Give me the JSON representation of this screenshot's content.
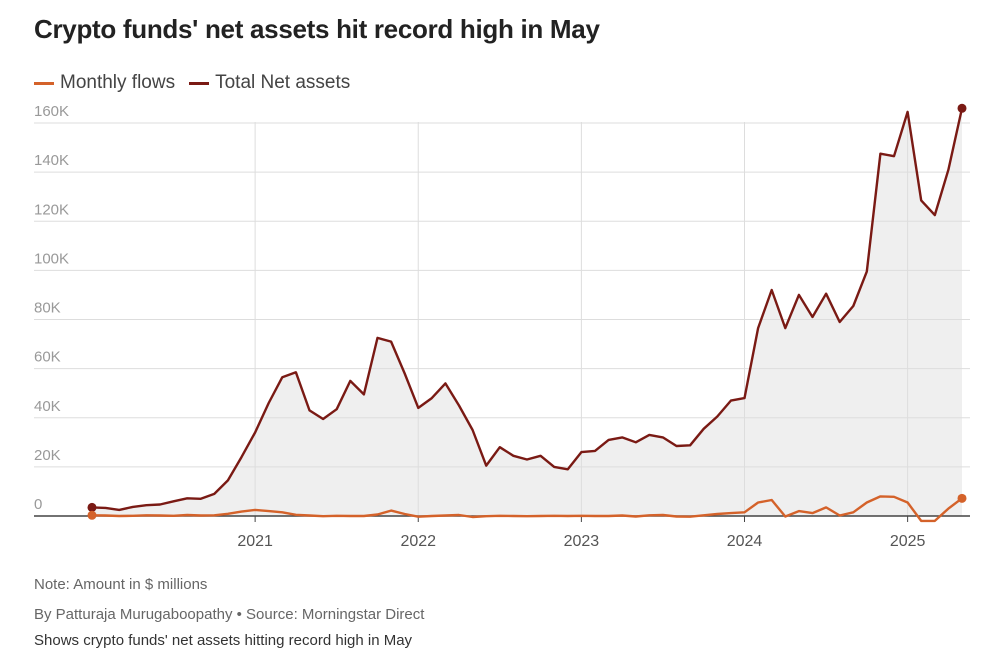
{
  "header": {
    "title": "Crypto funds' net assets hit record high in May"
  },
  "legend": {
    "items": [
      {
        "label": "Monthly flows",
        "color": "#d4622a"
      },
      {
        "label": "Total Net assets",
        "color": "#7a1a14"
      }
    ]
  },
  "footer": {
    "note": "Note: Amount in $ millions",
    "byline": "By Patturaja Murugaboopathy  • Source: Morningstar Direct",
    "caption": "Shows crypto funds' net assets hitting record high in May"
  },
  "colors": {
    "area_fill": "#efefef",
    "grid": "#dddddd",
    "axis": "#444444",
    "tick_text": "#999999"
  },
  "chart_data": {
    "type": "line",
    "x_start": "2020-01",
    "x_end": "2025-05",
    "x_tick_labels": [
      "2021",
      "2022",
      "2023",
      "2024",
      "2025"
    ],
    "y_tick_labels": [
      "0",
      "20K",
      "40K",
      "60K",
      "80K",
      "100K",
      "120K",
      "140K",
      "160K"
    ],
    "ylim": [
      0,
      160000
    ],
    "grid": true,
    "legend_position": "top-left",
    "series": [
      {
        "name": "Total Net assets",
        "area_fill": true,
        "points": [
          [
            "2020-01",
            3500
          ],
          [
            "2020-02",
            3300
          ],
          [
            "2020-03",
            2500
          ],
          [
            "2020-04",
            3700
          ],
          [
            "2020-05",
            4400
          ],
          [
            "2020-06",
            4700
          ],
          [
            "2020-07",
            6000
          ],
          [
            "2020-08",
            7200
          ],
          [
            "2020-09",
            7000
          ],
          [
            "2020-10",
            9000
          ],
          [
            "2020-11",
            14500
          ],
          [
            "2020-12",
            24000
          ],
          [
            "2021-01",
            34000
          ],
          [
            "2021-02",
            46000
          ],
          [
            "2021-03",
            56500
          ],
          [
            "2021-04",
            58500
          ],
          [
            "2021-05",
            43000
          ],
          [
            "2021-06",
            39500
          ],
          [
            "2021-07",
            43500
          ],
          [
            "2021-08",
            55000
          ],
          [
            "2021-09",
            49500
          ],
          [
            "2021-10",
            72500
          ],
          [
            "2021-11",
            71000
          ],
          [
            "2021-12",
            58000
          ],
          [
            "2022-01",
            44000
          ],
          [
            "2022-02",
            48000
          ],
          [
            "2022-03",
            54000
          ],
          [
            "2022-04",
            45000
          ],
          [
            "2022-05",
            35000
          ],
          [
            "2022-06",
            20500
          ],
          [
            "2022-07",
            28000
          ],
          [
            "2022-08",
            24500
          ],
          [
            "2022-09",
            23000
          ],
          [
            "2022-10",
            24500
          ],
          [
            "2022-11",
            20000
          ],
          [
            "2022-12",
            19000
          ],
          [
            "2023-01",
            26000
          ],
          [
            "2023-02",
            26500
          ],
          [
            "2023-03",
            31000
          ],
          [
            "2023-04",
            32000
          ],
          [
            "2023-05",
            30000
          ],
          [
            "2023-06",
            33000
          ],
          [
            "2023-07",
            32000
          ],
          [
            "2023-08",
            28500
          ],
          [
            "2023-09",
            28800
          ],
          [
            "2023-10",
            35500
          ],
          [
            "2023-11",
            40500
          ],
          [
            "2023-12",
            47000
          ],
          [
            "2024-01",
            48000
          ],
          [
            "2024-02",
            76500
          ],
          [
            "2024-03",
            92000
          ],
          [
            "2024-04",
            76500
          ],
          [
            "2024-05",
            90000
          ],
          [
            "2024-06",
            81000
          ],
          [
            "2024-07",
            90500
          ],
          [
            "2024-08",
            79000
          ],
          [
            "2024-09",
            85500
          ],
          [
            "2024-10",
            99500
          ],
          [
            "2024-11",
            147500
          ],
          [
            "2024-12",
            146500
          ],
          [
            "2025-01",
            164500
          ],
          [
            "2025-02",
            128500
          ],
          [
            "2025-03",
            122500
          ],
          [
            "2025-04",
            141000
          ],
          [
            "2025-05",
            166000
          ]
        ]
      },
      {
        "name": "Monthly flows",
        "area_fill": false,
        "points": [
          [
            "2020-01",
            300
          ],
          [
            "2020-02",
            200
          ],
          [
            "2020-03",
            0
          ],
          [
            "2020-04",
            100
          ],
          [
            "2020-05",
            300
          ],
          [
            "2020-06",
            200
          ],
          [
            "2020-07",
            100
          ],
          [
            "2020-08",
            400
          ],
          [
            "2020-09",
            200
          ],
          [
            "2020-10",
            300
          ],
          [
            "2020-11",
            900
          ],
          [
            "2020-12",
            1800
          ],
          [
            "2021-01",
            2500
          ],
          [
            "2021-02",
            2000
          ],
          [
            "2021-03",
            1500
          ],
          [
            "2021-04",
            500
          ],
          [
            "2021-05",
            200
          ],
          [
            "2021-06",
            -100
          ],
          [
            "2021-07",
            100
          ],
          [
            "2021-08",
            0
          ],
          [
            "2021-09",
            0
          ],
          [
            "2021-10",
            600
          ],
          [
            "2021-11",
            2200
          ],
          [
            "2021-12",
            800
          ],
          [
            "2022-01",
            -300
          ],
          [
            "2022-02",
            0
          ],
          [
            "2022-03",
            200
          ],
          [
            "2022-04",
            400
          ],
          [
            "2022-05",
            -400
          ],
          [
            "2022-06",
            -100
          ],
          [
            "2022-07",
            100
          ],
          [
            "2022-08",
            0
          ],
          [
            "2022-09",
            -100
          ],
          [
            "2022-10",
            0
          ],
          [
            "2022-11",
            100
          ],
          [
            "2022-12",
            0
          ],
          [
            "2023-01",
            100
          ],
          [
            "2023-02",
            0
          ],
          [
            "2023-03",
            0
          ],
          [
            "2023-04",
            200
          ],
          [
            "2023-05",
            -200
          ],
          [
            "2023-06",
            300
          ],
          [
            "2023-07",
            400
          ],
          [
            "2023-08",
            -200
          ],
          [
            "2023-09",
            -300
          ],
          [
            "2023-10",
            300
          ],
          [
            "2023-11",
            800
          ],
          [
            "2023-12",
            1200
          ],
          [
            "2024-01",
            1500
          ],
          [
            "2024-02",
            5500
          ],
          [
            "2024-03",
            6500
          ],
          [
            "2024-04",
            -200
          ],
          [
            "2024-05",
            2000
          ],
          [
            "2024-06",
            1200
          ],
          [
            "2024-07",
            3500
          ],
          [
            "2024-08",
            200
          ],
          [
            "2024-09",
            1500
          ],
          [
            "2024-10",
            5500
          ],
          [
            "2024-11",
            8000
          ],
          [
            "2024-12",
            7800
          ],
          [
            "2025-01",
            5500
          ],
          [
            "2025-02",
            -2000
          ],
          [
            "2025-03",
            -2000
          ],
          [
            "2025-04",
            3000
          ],
          [
            "2025-05",
            7200
          ]
        ]
      }
    ]
  }
}
